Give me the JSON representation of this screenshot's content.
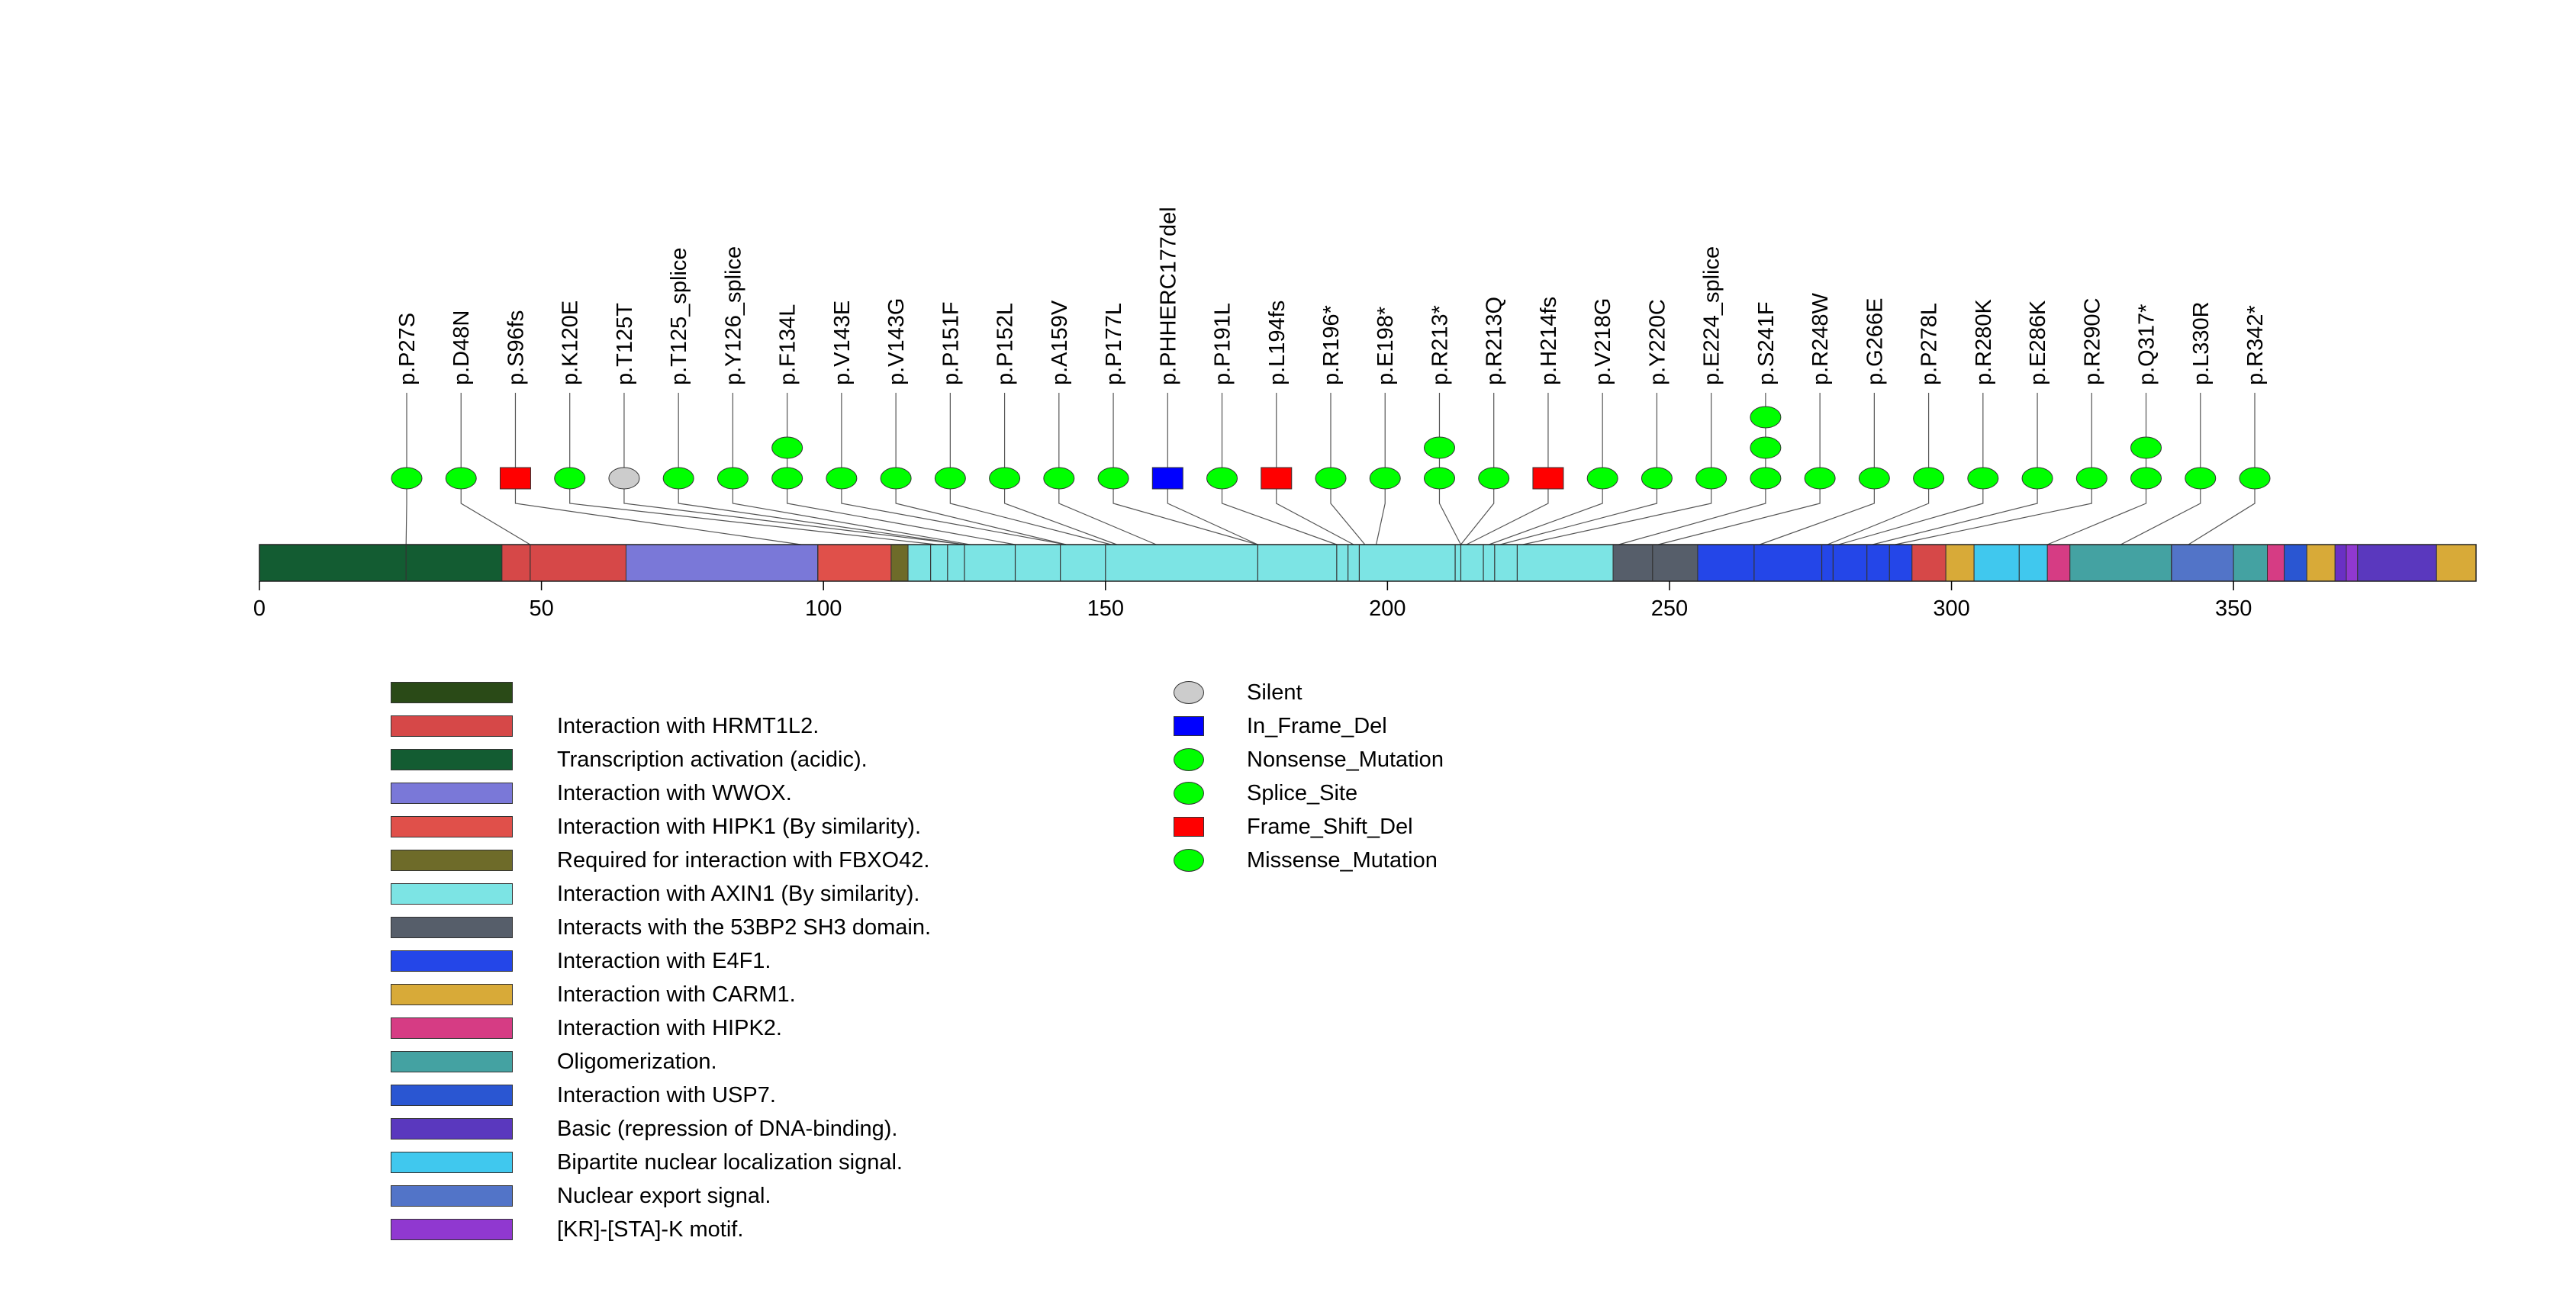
{
  "chart_data": {
    "type": "lollipop",
    "xlabel": "",
    "xlim": [
      0,
      393
    ],
    "xticks": [
      0,
      50,
      100,
      150,
      200,
      250,
      300,
      350
    ],
    "protein_length": 393,
    "domains": [
      {
        "start": 0,
        "end": 43,
        "color": "#135c32"
      },
      {
        "start": 43,
        "end": 65,
        "color": "#d64848"
      },
      {
        "start": 65,
        "end": 99,
        "color": "#7a78d8"
      },
      {
        "start": 99,
        "end": 112,
        "color": "#e0504a"
      },
      {
        "start": 112,
        "end": 115,
        "color": "#6e6b29"
      },
      {
        "start": 115,
        "end": 240,
        "color": "#7ce4e4"
      },
      {
        "start": 240,
        "end": 255,
        "color": "#565e6a"
      },
      {
        "start": 255,
        "end": 293,
        "color": "#2446e8"
      },
      {
        "start": 293,
        "end": 299,
        "color": "#d64848"
      },
      {
        "start": 299,
        "end": 304,
        "color": "#d8aa38"
      },
      {
        "start": 304,
        "end": 317,
        "color": "#40c8ee"
      },
      {
        "start": 317,
        "end": 321,
        "color": "#d63c84"
      },
      {
        "start": 321,
        "end": 339,
        "color": "#44a2a2"
      },
      {
        "start": 339,
        "end": 350,
        "color": "#5274c8"
      },
      {
        "start": 350,
        "end": 356,
        "color": "#44a2a2"
      },
      {
        "start": 356,
        "end": 359,
        "color": "#d63c84"
      },
      {
        "start": 359,
        "end": 363,
        "color": "#2a56d2"
      },
      {
        "start": 363,
        "end": 368,
        "color": "#d8aa38"
      },
      {
        "start": 368,
        "end": 370,
        "color": "#6a30c4"
      },
      {
        "start": 370,
        "end": 372,
        "color": "#9038d0"
      },
      {
        "start": 372,
        "end": 386,
        "color": "#5a38be"
      },
      {
        "start": 386,
        "end": 393,
        "color": "#d8aa38"
      }
    ],
    "internal_lines": [
      26,
      48,
      99,
      119,
      122,
      125,
      134,
      142,
      150,
      177,
      191,
      193,
      195,
      212,
      213,
      217,
      219,
      223,
      247,
      265,
      277,
      279,
      285,
      289,
      312,
      339
    ],
    "mutations": [
      {
        "label": "p.P27S",
        "pos": 26,
        "stack": [
          {
            "shape": "circle",
            "color": "#00ff00"
          }
        ]
      },
      {
        "label": "p.D48N",
        "pos": 48,
        "stack": [
          {
            "shape": "circle",
            "color": "#00ff00"
          }
        ]
      },
      {
        "label": "p.S96fs",
        "pos": 96,
        "stack": [
          {
            "shape": "square",
            "color": "#ff0000"
          }
        ]
      },
      {
        "label": "p.K120E",
        "pos": 120,
        "stack": [
          {
            "shape": "circle",
            "color": "#00ff00"
          }
        ]
      },
      {
        "label": "p.T125T",
        "pos": 125,
        "stack": [
          {
            "shape": "circle",
            "color": "#cccccc"
          }
        ]
      },
      {
        "label": "p.T125_splice",
        "pos": 125,
        "stack": [
          {
            "shape": "circle",
            "color": "#00ff00"
          }
        ]
      },
      {
        "label": "p.Y126_splice",
        "pos": 126,
        "stack": [
          {
            "shape": "circle",
            "color": "#00ff00"
          }
        ]
      },
      {
        "label": "p.F134L",
        "pos": 134,
        "stack": [
          {
            "shape": "circle",
            "color": "#00ff00"
          },
          {
            "shape": "circle",
            "color": "#00ff00"
          }
        ]
      },
      {
        "label": "p.V143E",
        "pos": 143,
        "stack": [
          {
            "shape": "circle",
            "color": "#00ff00"
          }
        ]
      },
      {
        "label": "p.V143G",
        "pos": 143,
        "stack": [
          {
            "shape": "circle",
            "color": "#00ff00"
          }
        ]
      },
      {
        "label": "p.P151F",
        "pos": 151,
        "stack": [
          {
            "shape": "circle",
            "color": "#00ff00"
          }
        ]
      },
      {
        "label": "p.P152L",
        "pos": 152,
        "stack": [
          {
            "shape": "circle",
            "color": "#00ff00"
          }
        ]
      },
      {
        "label": "p.A159V",
        "pos": 159,
        "stack": [
          {
            "shape": "circle",
            "color": "#00ff00"
          }
        ]
      },
      {
        "label": "p.P177L",
        "pos": 177,
        "stack": [
          {
            "shape": "circle",
            "color": "#00ff00"
          }
        ]
      },
      {
        "label": "p.PHHERC177del",
        "pos": 177,
        "stack": [
          {
            "shape": "square",
            "color": "#0000ff"
          }
        ]
      },
      {
        "label": "p.P191L",
        "pos": 191,
        "stack": [
          {
            "shape": "circle",
            "color": "#00ff00"
          }
        ]
      },
      {
        "label": "p.L194fs",
        "pos": 194,
        "stack": [
          {
            "shape": "square",
            "color": "#ff0000"
          }
        ]
      },
      {
        "label": "p.R196*",
        "pos": 196,
        "stack": [
          {
            "shape": "circle",
            "color": "#00ff00"
          }
        ]
      },
      {
        "label": "p.E198*",
        "pos": 198,
        "stack": [
          {
            "shape": "circle",
            "color": "#00ff00"
          }
        ]
      },
      {
        "label": "p.R213*",
        "pos": 213,
        "stack": [
          {
            "shape": "circle",
            "color": "#00ff00"
          },
          {
            "shape": "circle",
            "color": "#00ff00"
          }
        ]
      },
      {
        "label": "p.R213Q",
        "pos": 213,
        "stack": [
          {
            "shape": "circle",
            "color": "#00ff00"
          }
        ]
      },
      {
        "label": "p.H214fs",
        "pos": 214,
        "stack": [
          {
            "shape": "square",
            "color": "#ff0000"
          }
        ]
      },
      {
        "label": "p.V218G",
        "pos": 218,
        "stack": [
          {
            "shape": "circle",
            "color": "#00ff00"
          }
        ]
      },
      {
        "label": "p.Y220C",
        "pos": 220,
        "stack": [
          {
            "shape": "circle",
            "color": "#00ff00"
          }
        ]
      },
      {
        "label": "p.E224_splice",
        "pos": 224,
        "stack": [
          {
            "shape": "circle",
            "color": "#00ff00"
          }
        ]
      },
      {
        "label": "p.S241F",
        "pos": 241,
        "stack": [
          {
            "shape": "circle",
            "color": "#00ff00"
          },
          {
            "shape": "circle",
            "color": "#00ff00"
          },
          {
            "shape": "circle",
            "color": "#00ff00"
          }
        ]
      },
      {
        "label": "p.R248W",
        "pos": 248,
        "stack": [
          {
            "shape": "circle",
            "color": "#00ff00"
          }
        ]
      },
      {
        "label": "p.G266E",
        "pos": 266,
        "stack": [
          {
            "shape": "circle",
            "color": "#00ff00"
          }
        ]
      },
      {
        "label": "p.P278L",
        "pos": 278,
        "stack": [
          {
            "shape": "circle",
            "color": "#00ff00"
          }
        ]
      },
      {
        "label": "p.R280K",
        "pos": 280,
        "stack": [
          {
            "shape": "circle",
            "color": "#00ff00"
          }
        ]
      },
      {
        "label": "p.E286K",
        "pos": 286,
        "stack": [
          {
            "shape": "circle",
            "color": "#00ff00"
          }
        ]
      },
      {
        "label": "p.R290C",
        "pos": 290,
        "stack": [
          {
            "shape": "circle",
            "color": "#00ff00"
          }
        ]
      },
      {
        "label": "p.Q317*",
        "pos": 317,
        "stack": [
          {
            "shape": "circle",
            "color": "#00ff00"
          },
          {
            "shape": "circle",
            "color": "#00ff00"
          }
        ]
      },
      {
        "label": "p.L330R",
        "pos": 330,
        "stack": [
          {
            "shape": "circle",
            "color": "#00ff00"
          }
        ]
      },
      {
        "label": "p.R342*",
        "pos": 342,
        "stack": [
          {
            "shape": "circle",
            "color": "#00ff00"
          }
        ]
      }
    ],
    "domain_legend": [
      {
        "label": "",
        "color": "#2a4a17"
      },
      {
        "label": "Interaction with HRMT1L2.",
        "color": "#d64848"
      },
      {
        "label": "Transcription activation (acidic).",
        "color": "#135c32"
      },
      {
        "label": "Interaction with WWOX.",
        "color": "#7a78d8"
      },
      {
        "label": "Interaction with HIPK1 (By similarity).",
        "color": "#e0504a"
      },
      {
        "label": "Required for interaction with FBXO42.",
        "color": "#6e6b29"
      },
      {
        "label": "Interaction with AXIN1 (By similarity).",
        "color": "#7ce4e4"
      },
      {
        "label": "Interacts with the 53BP2 SH3 domain.",
        "color": "#565e6a"
      },
      {
        "label": "Interaction with E4F1.",
        "color": "#2446e8"
      },
      {
        "label": "Interaction with CARM1.",
        "color": "#d8aa38"
      },
      {
        "label": "Interaction with HIPK2.",
        "color": "#d63c84"
      },
      {
        "label": "Oligomerization.",
        "color": "#44a2a2"
      },
      {
        "label": "Interaction with USP7.",
        "color": "#2a56d2"
      },
      {
        "label": "Basic (repression of DNA-binding).",
        "color": "#5a38be"
      },
      {
        "label": "Bipartite nuclear localization signal.",
        "color": "#40c8ee"
      },
      {
        "label": "Nuclear export signal.",
        "color": "#5274c8"
      },
      {
        "label": "[KR]-[STA]-K motif.",
        "color": "#9038d0"
      }
    ],
    "mutation_legend": [
      {
        "label": "Silent",
        "shape": "circle",
        "color": "#cccccc"
      },
      {
        "label": "In_Frame_Del",
        "shape": "square",
        "color": "#0000ff"
      },
      {
        "label": "Nonsense_Mutation",
        "shape": "circle",
        "color": "#00ff00"
      },
      {
        "label": "Splice_Site",
        "shape": "circle",
        "color": "#00ff00"
      },
      {
        "label": "Frame_Shift_Del",
        "shape": "square",
        "color": "#ff0000"
      },
      {
        "label": "Missense_Mutation",
        "shape": "circle",
        "color": "#00ff00"
      }
    ]
  }
}
